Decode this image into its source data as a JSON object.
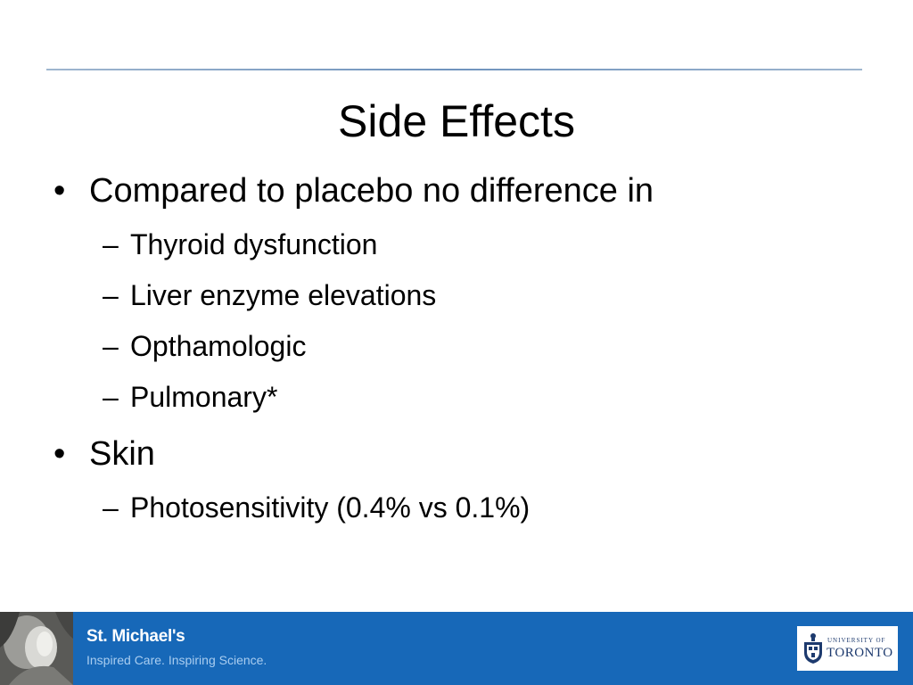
{
  "slide": {
    "title": "Side Effects",
    "bullets": [
      {
        "text": "Compared to placebo no difference in",
        "sub": [
          "Thyroid dysfunction",
          "Liver enzyme elevations",
          "Opthamologic",
          "Pulmonary*"
        ]
      },
      {
        "text": "Skin",
        "sub": [
          "Photosensitivity (0.4% vs 0.1%)"
        ]
      }
    ],
    "bullet_mark": "•",
    "sub_mark": "–"
  },
  "footer": {
    "brand_name": "St. Michael's",
    "tagline": "Inspired Care. Inspiring Science.",
    "partner_small": "UNIVERSITY OF",
    "partner_big": "TORONTO",
    "background_color": "#1768b8"
  }
}
